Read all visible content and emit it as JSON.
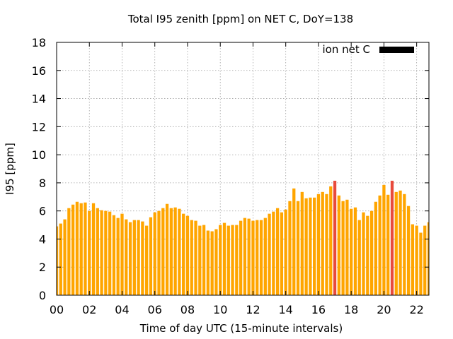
{
  "chart_data": {
    "type": "bar",
    "title": "Total I95 zenith [ppm] on NET C, DoY=138",
    "xlabel": "Time of day UTC (15-minute intervals)",
    "ylabel": "I95 [ppm]",
    "ylim": [
      0,
      18
    ],
    "xlim_hours": [
      0,
      22.75
    ],
    "y_ticks": [
      "0",
      "2",
      "4",
      "6",
      "8",
      "10",
      "12",
      "14",
      "16",
      "18"
    ],
    "x_ticks": [
      {
        "hour": 0,
        "label": "00"
      },
      {
        "hour": 2,
        "label": "02"
      },
      {
        "hour": 4,
        "label": "04"
      },
      {
        "hour": 6,
        "label": "06"
      },
      {
        "hour": 8,
        "label": "08"
      },
      {
        "hour": 10,
        "label": "10"
      },
      {
        "hour": 12,
        "label": "12"
      },
      {
        "hour": 14,
        "label": "14"
      },
      {
        "hour": 16,
        "label": "16"
      },
      {
        "hour": 18,
        "label": "18"
      },
      {
        "hour": 20,
        "label": "20"
      },
      {
        "hour": 22,
        "label": "22"
      }
    ],
    "grid": true,
    "legend": {
      "position": "top-right",
      "label": "ion net C",
      "swatch_color": "#000000"
    },
    "bar_color": "#ffa500",
    "highlight_color": "#e84a3c",
    "series": [
      {
        "name": "ion net C",
        "interval_hours": 0.25,
        "start_hour": 0,
        "values": [
          4.9,
          5.1,
          5.4,
          6.2,
          6.45,
          6.65,
          6.55,
          6.6,
          6.0,
          6.55,
          6.2,
          6.05,
          6.0,
          5.95,
          5.7,
          5.5,
          5.8,
          5.4,
          5.2,
          5.35,
          5.35,
          5.25,
          4.95,
          5.55,
          5.9,
          6.0,
          6.2,
          6.5,
          6.2,
          6.25,
          6.15,
          5.8,
          5.65,
          5.35,
          5.3,
          4.95,
          5.0,
          4.6,
          4.55,
          4.7,
          5.0,
          5.15,
          4.95,
          5.0,
          5.0,
          5.3,
          5.5,
          5.45,
          5.3,
          5.35,
          5.35,
          5.5,
          5.8,
          5.95,
          6.2,
          5.9,
          6.1,
          6.7,
          7.6,
          6.7,
          7.35,
          6.9,
          6.95,
          6.95,
          7.2,
          7.35,
          7.2,
          7.75,
          8.15,
          7.1,
          6.7,
          6.8,
          6.15,
          6.25,
          5.35,
          5.9,
          5.65,
          6.0,
          6.65,
          7.1,
          7.85,
          7.15,
          8.15,
          7.35,
          7.45,
          7.2,
          6.35,
          5.05,
          4.95,
          4.45,
          4.95,
          5.2
        ],
        "highlight_indices": [
          68,
          82
        ]
      }
    ]
  }
}
